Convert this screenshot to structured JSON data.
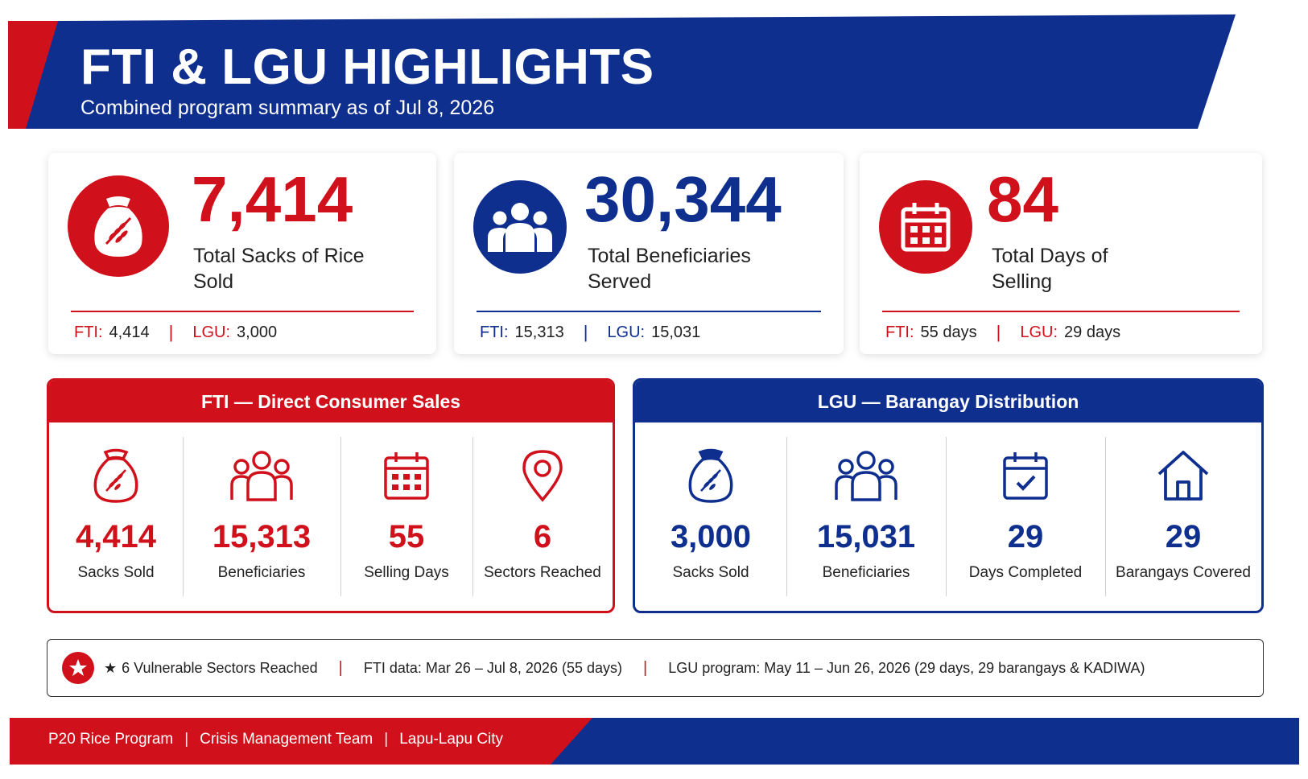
{
  "header": {
    "title": "FTI & LGU HIGHLIGHTS",
    "subtitle": "Combined program summary as of Jul 8, 2026"
  },
  "colors": {
    "red": "#d0111b",
    "blue": "#0f2f8f"
  },
  "stats": [
    {
      "icon": "rice-sack-icon",
      "value": "7,414",
      "label": "Total Sacks of Rice Sold",
      "fti_key": "FTI:",
      "fti_val": "4,414",
      "lgu_key": "LGU:",
      "lgu_val": "3,000"
    },
    {
      "icon": "people-icon",
      "value": "30,344",
      "label": "Total Beneficiaries Served",
      "fti_key": "FTI:",
      "fti_val": "15,313",
      "lgu_key": "LGU:",
      "lgu_val": "15,031"
    },
    {
      "icon": "calendar-icon",
      "value": "84",
      "label": "Total Days of Selling",
      "fti_key": "FTI:",
      "fti_val": "55 days",
      "lgu_key": "LGU:",
      "lgu_val": "29 days"
    }
  ],
  "fti_panel": {
    "title": "FTI — Direct Consumer Sales",
    "metrics": [
      {
        "icon": "rice-sack-icon",
        "value": "4,414",
        "label": "Sacks Sold"
      },
      {
        "icon": "people-icon",
        "value": "15,313",
        "label": "Beneficiaries"
      },
      {
        "icon": "calendar-icon",
        "value": "55",
        "label": "Selling Days"
      },
      {
        "icon": "location-pin-icon",
        "value": "6",
        "label": "Sectors Reached"
      }
    ]
  },
  "lgu_panel": {
    "title": "LGU — Barangay Distribution",
    "metrics": [
      {
        "icon": "rice-sack-icon",
        "value": "3,000",
        "label": "Sacks Sold"
      },
      {
        "icon": "people-icon",
        "value": "15,031",
        "label": "Beneficiaries"
      },
      {
        "icon": "calendar-check-icon",
        "value": "29",
        "label": "Days Completed"
      },
      {
        "icon": "house-icon",
        "value": "29",
        "label": "Barangays Covered"
      }
    ]
  },
  "notes": {
    "star_glyph": "★",
    "sectors": "6 Vulnerable Sectors Reached",
    "fti_data": "FTI data: Mar 26 – Jul 8, 2026 (55 days)",
    "lgu_program": "LGU program: May 11 – Jun 26, 2026 (29 days, 29 barangays & KADIWA)",
    "separator": "|"
  },
  "footer": {
    "items": [
      "P20 Rice Program",
      "Crisis Management Team",
      "Lapu-Lapu City"
    ],
    "separator": "|"
  }
}
